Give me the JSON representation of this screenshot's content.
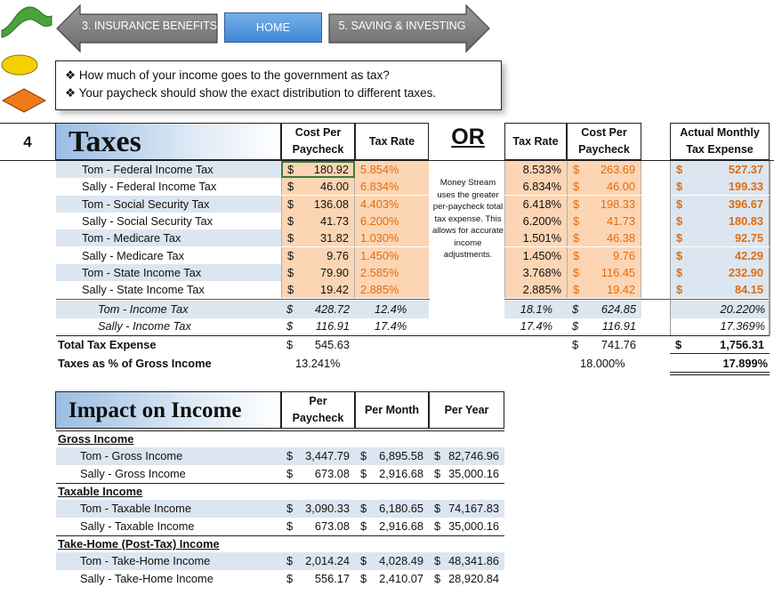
{
  "nav": {
    "prev_label": "3. INSURANCE BENEFITS",
    "home_label": "HOME",
    "next_label": "5. SAVING & INVESTING"
  },
  "questions": [
    "❖ How much of your income goes to the government as tax?",
    "❖ Your paycheck should show the exact distribution to different taxes."
  ],
  "section_number": "4",
  "taxes": {
    "title": "Taxes",
    "col_cost_per_paycheck": "Cost Per Paycheck",
    "col_tax_rate": "Tax Rate",
    "or_label": "OR",
    "col_tax_rate_2": "Tax Rate",
    "col_cost_per_paycheck_2": "Cost Per Paycheck",
    "col_actual_monthly": "Actual Monthly Tax Expense",
    "note": "Money Stream uses the greater per-paycheck total tax expense. This allows for accurate income adjustments.",
    "rows": [
      {
        "label": "Tom - Federal Income Tax",
        "cost": "180.92",
        "rate": "5.854%",
        "rate2": "8.533%",
        "cost2": "263.69",
        "monthly": "527.37"
      },
      {
        "label": "Sally - Federal Income Tax",
        "cost": "46.00",
        "rate": "6.834%",
        "rate2": "6.834%",
        "cost2": "46.00",
        "monthly": "199.33"
      },
      {
        "label": "Tom - Social Security Tax",
        "cost": "136.08",
        "rate": "4.403%",
        "rate2": "6.418%",
        "cost2": "198.33",
        "monthly": "396.67"
      },
      {
        "label": "Sally - Social Security Tax",
        "cost": "41.73",
        "rate": "6.200%",
        "rate2": "6.200%",
        "cost2": "41.73",
        "monthly": "180.83"
      },
      {
        "label": "Tom - Medicare Tax",
        "cost": "31.82",
        "rate": "1.030%",
        "rate2": "1.501%",
        "cost2": "46.38",
        "monthly": "92.75"
      },
      {
        "label": "Sally - Medicare Tax",
        "cost": "9.76",
        "rate": "1.450%",
        "rate2": "1.450%",
        "cost2": "9.76",
        "monthly": "42.29"
      },
      {
        "label": "Tom - State Income Tax",
        "cost": "79.90",
        "rate": "2.585%",
        "rate2": "3.768%",
        "cost2": "116.45",
        "monthly": "232.90"
      },
      {
        "label": "Sally - State Income Tax",
        "cost": "19.42",
        "rate": "2.885%",
        "rate2": "2.885%",
        "cost2": "19.42",
        "monthly": "84.15"
      }
    ],
    "subtotals": [
      {
        "label": "Tom - Income Tax",
        "cost": "428.72",
        "rate": "12.4%",
        "rate2": "18.1%",
        "cost2": "624.85",
        "monthly": "20.220%"
      },
      {
        "label": "Sally - Income Tax",
        "cost": "116.91",
        "rate": "17.4%",
        "rate2": "17.4%",
        "cost2": "116.91",
        "monthly": "17.369%"
      }
    ],
    "total_label": "Total Tax Expense",
    "total_cost": "545.63",
    "total_cost2": "741.76",
    "total_monthly": "1,756.31",
    "pct_label": "Taxes as % of Gross Income",
    "pct_1": "13.241%",
    "pct_2": "18.000%",
    "pct_monthly": "17.899%",
    "currency": "$"
  },
  "impact": {
    "title": "Impact on Income",
    "col_per_paycheck": "Per Paycheck",
    "col_per_month": "Per Month",
    "col_per_year": "Per Year",
    "groups": [
      {
        "heading": "Gross Income",
        "rows": [
          {
            "label": "Tom - Gross Income",
            "paycheck": "3,447.79",
            "month": "6,895.58",
            "year": "82,746.96"
          },
          {
            "label": "Sally - Gross Income",
            "paycheck": "673.08",
            "month": "2,916.68",
            "year": "35,000.16"
          }
        ]
      },
      {
        "heading": "Taxable Income",
        "rows": [
          {
            "label": "Tom - Taxable Income",
            "paycheck": "3,090.33",
            "month": "6,180.65",
            "year": "74,167.83"
          },
          {
            "label": "Sally - Taxable Income",
            "paycheck": "673.08",
            "month": "2,916.68",
            "year": "35,000.16"
          }
        ]
      },
      {
        "heading": "Take-Home (Post-Tax) Income",
        "rows": [
          {
            "label": "Tom - Take-Home Income",
            "paycheck": "2,014.24",
            "month": "4,028.49",
            "year": "48,341.86"
          },
          {
            "label": "Sally - Take-Home Income",
            "paycheck": "556.17",
            "month": "2,410.07",
            "year": "28,920.84"
          }
        ]
      }
    ]
  },
  "colors": {
    "accent_orange": "#e26b0a",
    "band_blue": "#dce6f1",
    "orange_fill": "#fcd5b4",
    "nav_home": "#3f86d6"
  }
}
